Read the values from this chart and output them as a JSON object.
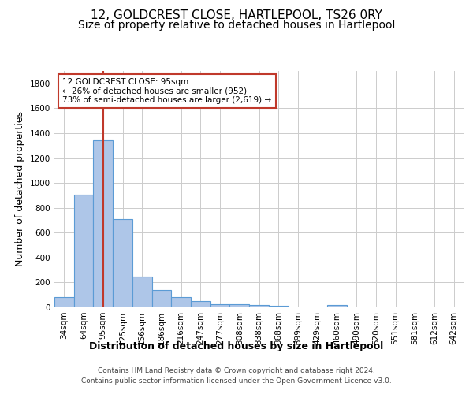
{
  "title_line1": "12, GOLDCREST CLOSE, HARTLEPOOL, TS26 0RY",
  "title_line2": "Size of property relative to detached houses in Hartlepool",
  "xlabel": "Distribution of detached houses by size in Hartlepool",
  "ylabel": "Number of detached properties",
  "categories": [
    "34sqm",
    "64sqm",
    "95sqm",
    "125sqm",
    "156sqm",
    "186sqm",
    "216sqm",
    "247sqm",
    "277sqm",
    "308sqm",
    "338sqm",
    "368sqm",
    "399sqm",
    "429sqm",
    "460sqm",
    "490sqm",
    "520sqm",
    "551sqm",
    "581sqm",
    "612sqm",
    "642sqm"
  ],
  "values": [
    80,
    905,
    1345,
    710,
    250,
    140,
    80,
    50,
    28,
    25,
    18,
    15,
    0,
    0,
    20,
    0,
    0,
    0,
    0,
    0,
    0
  ],
  "bar_color": "#aec6e8",
  "bar_edge_color": "#5b9bd5",
  "vline_x": 2,
  "vline_color": "#c0392b",
  "annotation_text": "12 GOLDCREST CLOSE: 95sqm\n← 26% of detached houses are smaller (952)\n73% of semi-detached houses are larger (2,619) →",
  "annotation_box_color": "#c0392b",
  "ylim": [
    0,
    1900
  ],
  "yticks": [
    0,
    200,
    400,
    600,
    800,
    1000,
    1200,
    1400,
    1600,
    1800
  ],
  "footer_line1": "Contains HM Land Registry data © Crown copyright and database right 2024.",
  "footer_line2": "Contains public sector information licensed under the Open Government Licence v3.0.",
  "background_color": "#ffffff",
  "grid_color": "#cccccc",
  "title_fontsize": 11,
  "subtitle_fontsize": 10,
  "axis_label_fontsize": 9,
  "tick_fontsize": 7.5,
  "footer_fontsize": 6.5
}
